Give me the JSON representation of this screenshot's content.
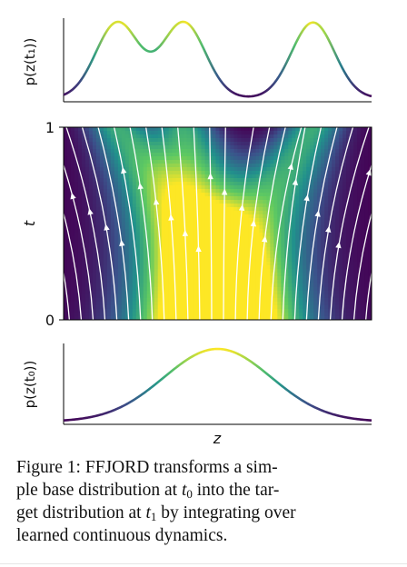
{
  "figure": {
    "top_ylabel": "p(z(t₁))",
    "bottom_ylabel": "p(z(t₀))",
    "mid_ylabel": "t",
    "xlabel": "z",
    "t_tick_top": "1",
    "t_tick_bottom": "0"
  },
  "caption": {
    "label": "Figure 1:",
    "line1_text": "FFJORD transforms a sim-",
    "line2_a": "ple base distribution at ",
    "t0_var": "t",
    "t0_sub": "0",
    "line2_b": " into the tar-",
    "line3_a": "get distribution at ",
    "t1_var": "t",
    "t1_sub": "1",
    "line3_b": " by integrating over",
    "line4": "learned continuous dynamics."
  },
  "chart_data": {
    "type": "line",
    "panels": [
      "top",
      "middle",
      "bottom"
    ],
    "top_density_peaks": [
      {
        "center": -0.65,
        "width": 0.14,
        "weight": 1.0
      },
      {
        "center": -0.22,
        "width": 0.14,
        "weight": 1.0
      },
      {
        "center": 0.62,
        "width": 0.14,
        "weight": 1.0
      }
    ],
    "bottom_density": {
      "mean": 0.0,
      "std": 0.35
    },
    "z_range": [
      -1.0,
      1.0
    ],
    "t_range": [
      0,
      1
    ],
    "colormap": [
      "#440154",
      "#3b528b",
      "#21918c",
      "#5ec962",
      "#fde725"
    ]
  }
}
